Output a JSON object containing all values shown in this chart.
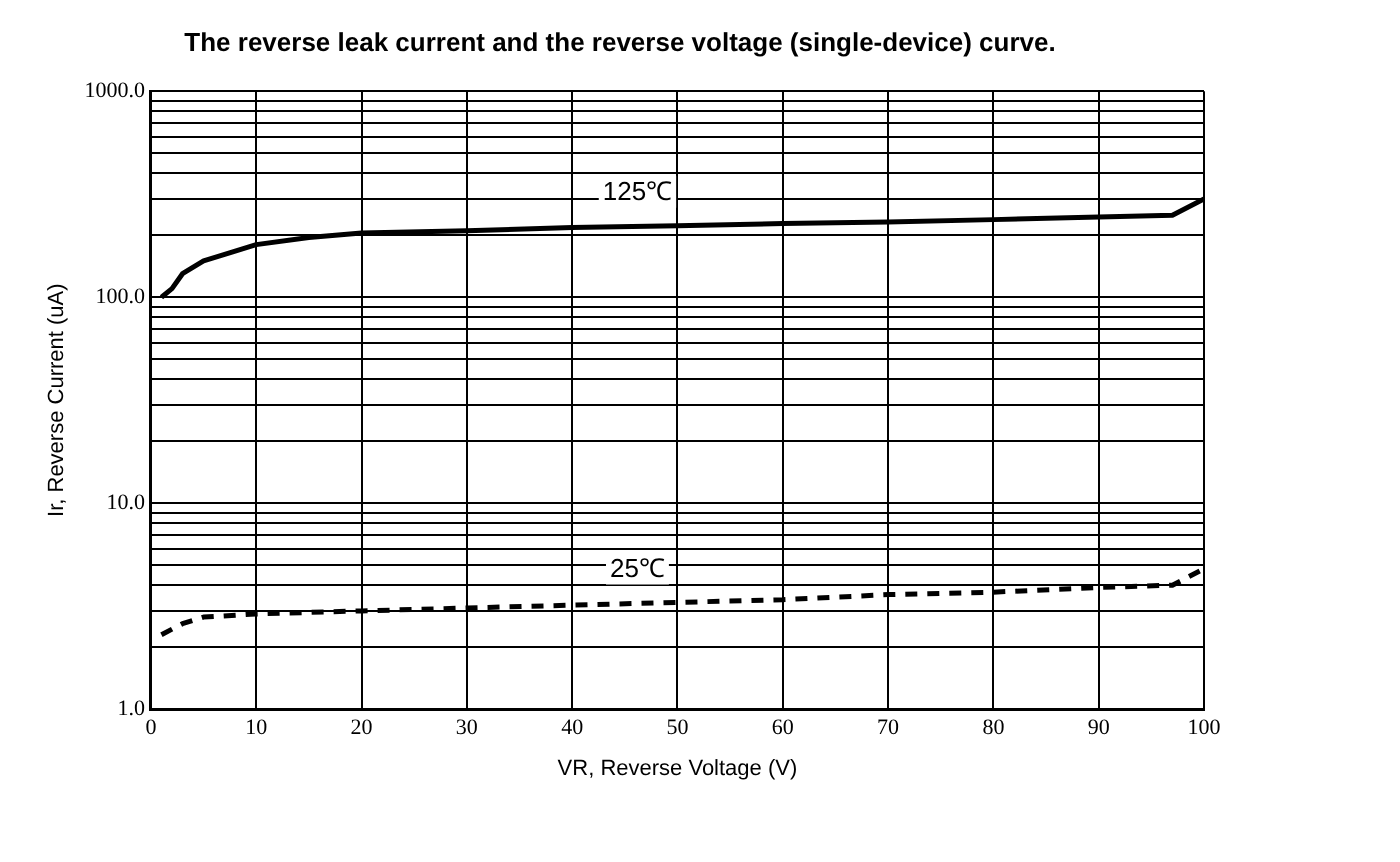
{
  "chart_data": {
    "type": "line",
    "title": "The reverse leak current and the reverse voltage (single-device) curve.",
    "xlabel": "VR, Reverse Voltage (V)",
    "ylabel": "Ir, Reverse Current (uA)",
    "log": "y",
    "grid": true,
    "legend": false,
    "marker": "none",
    "xlim": [
      0,
      100
    ],
    "xticks": [
      0,
      10,
      20,
      30,
      40,
      50,
      60,
      70,
      80,
      90,
      100
    ],
    "ylim": [
      1,
      1000
    ],
    "yticks": [
      {
        "value": 1,
        "label": "1.0"
      },
      {
        "value": 2,
        "label": null
      },
      {
        "value": 3,
        "label": null
      },
      {
        "value": 4,
        "label": null
      },
      {
        "value": 5,
        "label": null
      },
      {
        "value": 6,
        "label": null
      },
      {
        "value": 7,
        "label": null
      },
      {
        "value": 8,
        "label": null
      },
      {
        "value": 9,
        "label": null
      },
      {
        "value": 10,
        "label": "10.0"
      },
      {
        "value": 20,
        "label": null
      },
      {
        "value": 30,
        "label": null
      },
      {
        "value": 40,
        "label": null
      },
      {
        "value": 50,
        "label": null
      },
      {
        "value": 60,
        "label": null
      },
      {
        "value": 70,
        "label": null
      },
      {
        "value": 80,
        "label": null
      },
      {
        "value": 90,
        "label": null
      },
      {
        "value": 100,
        "label": "100.0"
      },
      {
        "value": 200,
        "label": null
      },
      {
        "value": 300,
        "label": null
      },
      {
        "value": 400,
        "label": null
      },
      {
        "value": 500,
        "label": null
      },
      {
        "value": 600,
        "label": null
      },
      {
        "value": 700,
        "label": null
      },
      {
        "value": 800,
        "label": null
      },
      {
        "value": 900,
        "label": null
      },
      {
        "value": 1000,
        "label": "1000.0"
      }
    ],
    "series": [
      {
        "name": "125℃",
        "color": "#000000",
        "line_style": "solid",
        "x": [
          1,
          2,
          3,
          5,
          10,
          15,
          20,
          30,
          40,
          50,
          60,
          70,
          80,
          90,
          97,
          100
        ],
        "values": [
          100,
          110,
          130,
          150,
          180,
          195,
          205,
          210,
          218,
          222,
          228,
          232,
          238,
          245,
          250,
          300
        ]
      },
      {
        "name": "25℃",
        "color": "#000000",
        "line_style": "dashed",
        "x": [
          1,
          3,
          5,
          10,
          20,
          30,
          40,
          50,
          60,
          70,
          80,
          90,
          97,
          100
        ],
        "values": [
          2.3,
          2.6,
          2.8,
          2.9,
          3.0,
          3.1,
          3.2,
          3.3,
          3.4,
          3.6,
          3.7,
          3.9,
          4.0,
          4.8
        ]
      }
    ]
  }
}
